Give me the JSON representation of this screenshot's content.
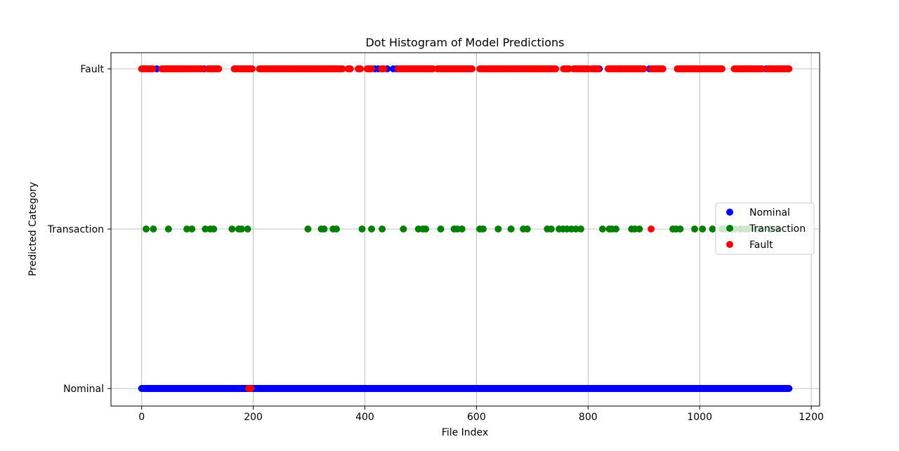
{
  "chart_data": {
    "type": "scatter",
    "title": "Dot Histogram of Model Predictions",
    "xlabel": "File Index",
    "ylabel": "Predicted Category",
    "xlim": [
      -55,
      1215
    ],
    "x_ticks": [
      0,
      200,
      400,
      600,
      800,
      1000,
      1200
    ],
    "x_tick_labels": [
      "0",
      "200",
      "400",
      "600",
      "800",
      "1000",
      "1200"
    ],
    "categories": [
      "Nominal",
      "Transaction",
      "Fault"
    ],
    "grid": true,
    "legend": {
      "placement": "center-right",
      "entries": [
        "Nominal",
        "Transaction",
        "Fault"
      ]
    },
    "series": [
      {
        "name": "Nominal",
        "color": "#0000ff",
        "points": [
          {
            "category": "Nominal",
            "x_range": [
              0,
              1160
            ],
            "step": 1,
            "note_dense": true
          },
          {
            "category": "Fault",
            "x": [
              27,
              112,
              197,
              247,
              335,
              418,
              424,
              440,
              451,
              457,
              820,
              856,
              858,
              910,
              1033,
              1036,
              1119
            ]
          }
        ]
      },
      {
        "name": "Transaction",
        "color": "#008000",
        "points": [
          {
            "category": "Transaction",
            "x": [
              8,
              21,
              48,
              81,
              90,
              114,
              123,
              129,
              162,
              174,
              179,
              190,
              298,
              322,
              327,
              343,
              349,
              395,
              412,
              431,
              469,
              496,
              504,
              509,
              536,
              560,
              566,
              574,
              606,
              612,
              639,
              662,
              684,
              691,
              727,
              734,
              748,
              755,
              762,
              770,
              778,
              787,
              826,
              838,
              843,
              850,
              878,
              884,
              892,
              952,
              958,
              965,
              991,
              1005,
              1023,
              1040,
              1046,
              1059,
              1063,
              1073,
              1080,
              1087,
              1101,
              1110,
              1126,
              1140
            ]
          }
        ]
      },
      {
        "name": "Fault",
        "color": "#ff0000",
        "points": [
          {
            "category": "Fault",
            "x_segments": [
              [
                0,
                20
              ],
              [
                36,
                82
              ],
              [
                86,
                108
              ],
              [
                118,
                138
              ],
              [
                166,
                198
              ],
              [
                211,
                266
              ],
              [
                268,
                360
              ],
              [
                370,
                374
              ],
              [
                388,
                393
              ],
              [
                404,
                412
              ],
              [
                430,
                434
              ],
              [
                460,
                522
              ],
              [
                530,
                592
              ],
              [
                606,
                662
              ],
              [
                666,
                742
              ],
              [
                756,
                766
              ],
              [
                774,
                800
              ],
              [
                806,
                818
              ],
              [
                836,
                900
              ],
              [
                914,
                935
              ],
              [
                960,
                1040
              ],
              [
                1062,
                1112
              ],
              [
                1122,
                1160
              ]
            ]
          },
          {
            "category": "Nominal",
            "x": [
              192,
              196
            ]
          },
          {
            "category": "Transaction",
            "x": [
              913
            ]
          }
        ]
      }
    ]
  }
}
